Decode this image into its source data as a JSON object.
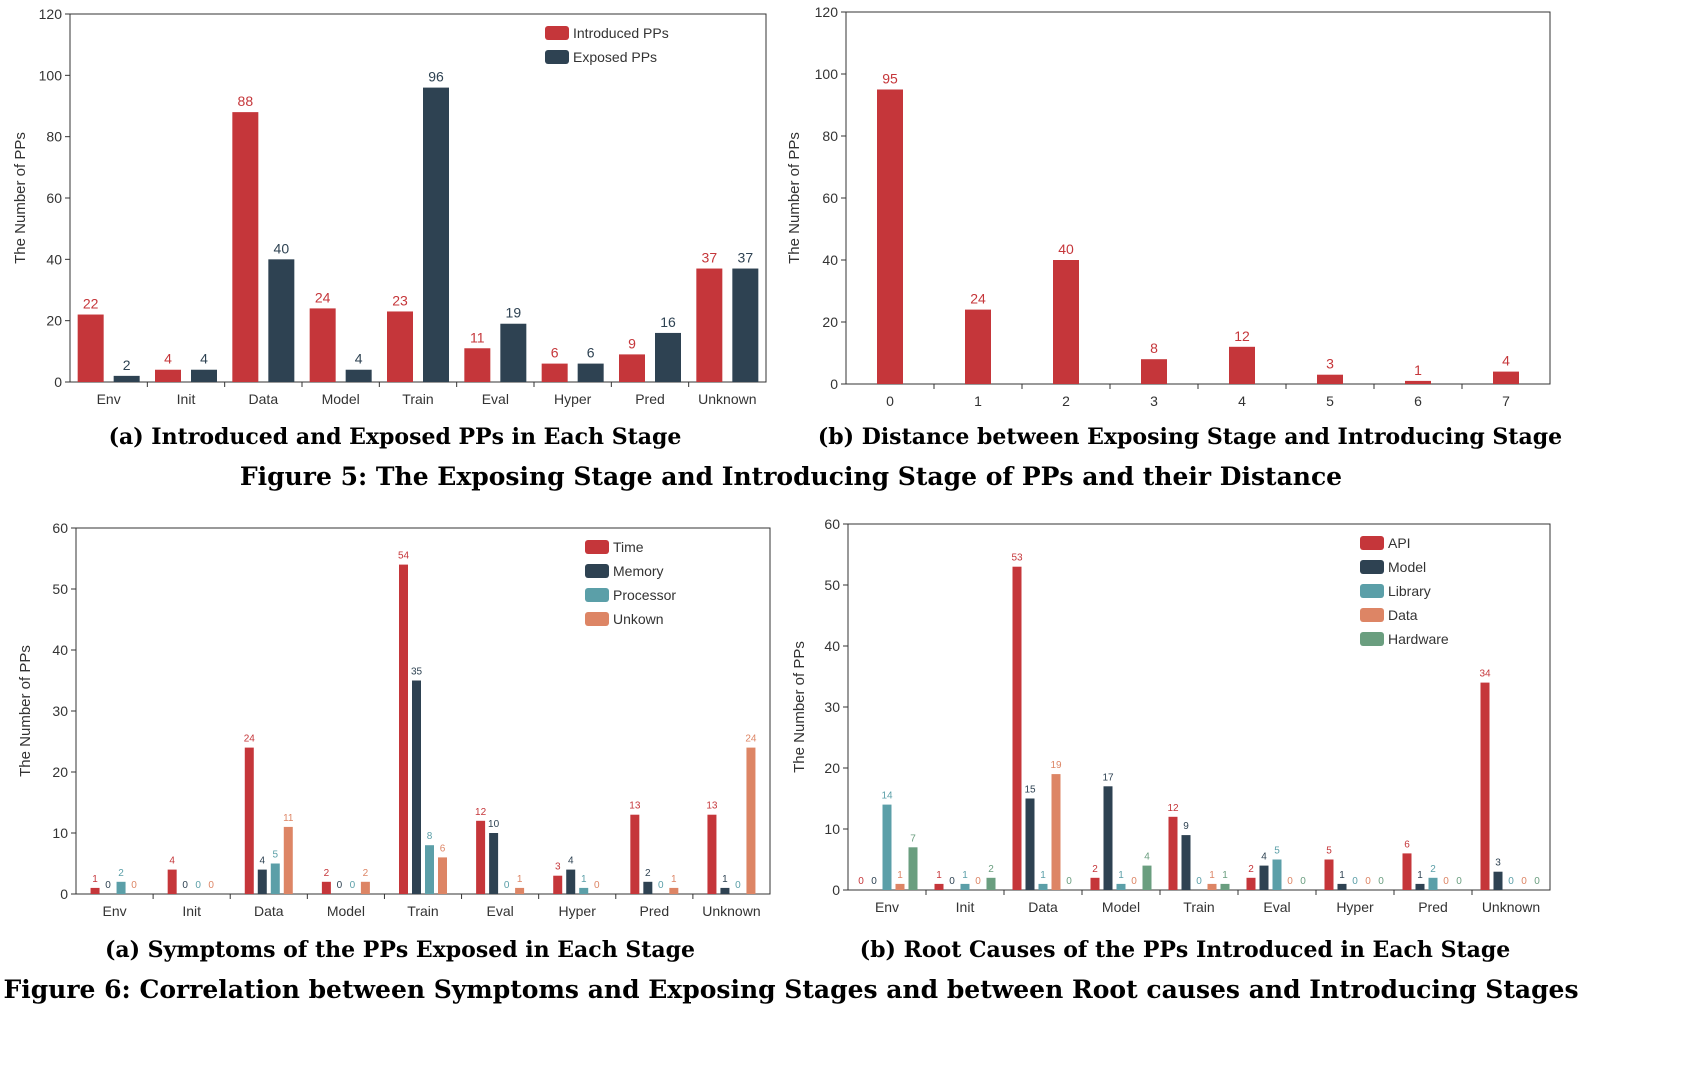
{
  "figures": {
    "fig5": {
      "caption": "Figure 5: The Exposing Stage and Introducing Stage of PPs and their Distance",
      "sub_a": "(a) Introduced and Exposed PPs in Each Stage",
      "sub_b": "(b) Distance between Exposing Stage and Introducing Stage"
    },
    "fig6": {
      "caption": "Figure 6: Correlation between Symptoms and Exposing Stages and between Root causes and Introducing Stages",
      "sub_a": "(a) Symptoms of the PPs Exposed in Each Stage",
      "sub_b": "(b) Root Causes of the PPs Introduced in Each Stage"
    }
  },
  "chart_data": [
    {
      "id": "fig5a",
      "type": "bar",
      "title": "(a) Introduced and Exposed PPs in Each Stage",
      "xlabel": "",
      "ylabel": "The Number of PPs",
      "ylim": [
        0,
        120
      ],
      "yticks": [
        0,
        20,
        40,
        60,
        80,
        100,
        120
      ],
      "categories": [
        "Env",
        "Init",
        "Data",
        "Model",
        "Train",
        "Eval",
        "Hyper",
        "Pred",
        "Unknown"
      ],
      "legend_position": "top-right",
      "grid": false,
      "series": [
        {
          "name": "Introduced PPs",
          "color": "#c5363a",
          "values": [
            22,
            4,
            88,
            24,
            23,
            11,
            6,
            9,
            37
          ]
        },
        {
          "name": "Exposed PPs",
          "color": "#2e4252",
          "values": [
            2,
            4,
            40,
            4,
            96,
            19,
            6,
            16,
            37
          ]
        }
      ]
    },
    {
      "id": "fig5b",
      "type": "bar",
      "title": "(b) Distance between Exposing Stage and Introducing Stage",
      "xlabel": "",
      "ylabel": "The Number of PPs",
      "ylim": [
        0,
        120
      ],
      "yticks": [
        0,
        20,
        40,
        60,
        80,
        100,
        120
      ],
      "categories": [
        "0",
        "1",
        "2",
        "3",
        "4",
        "5",
        "6",
        "7"
      ],
      "grid": false,
      "series": [
        {
          "name": "",
          "color": "#c5363a",
          "values": [
            95,
            24,
            40,
            8,
            12,
            3,
            1,
            4
          ]
        }
      ]
    },
    {
      "id": "fig6a",
      "type": "bar",
      "title": "(a) Symptoms of the PPs Exposed in Each Stage",
      "xlabel": "",
      "ylabel": "The Number of PPs",
      "ylim": [
        0,
        60
      ],
      "yticks": [
        0,
        10,
        20,
        30,
        40,
        50,
        60
      ],
      "categories": [
        "Env",
        "Init",
        "Data",
        "Model",
        "Train",
        "Eval",
        "Hyper",
        "Pred",
        "Unknown"
      ],
      "legend_position": "top-right",
      "grid": false,
      "series": [
        {
          "name": "Time",
          "color": "#c5363a",
          "values": [
            1,
            4,
            24,
            2,
            54,
            12,
            3,
            13,
            13
          ]
        },
        {
          "name": "Memory",
          "color": "#2e4252",
          "values": [
            0,
            0,
            4,
            0,
            35,
            10,
            4,
            2,
            1
          ]
        },
        {
          "name": "Processor",
          "color": "#5b9fa8",
          "values": [
            2,
            0,
            5,
            0,
            8,
            0,
            1,
            0,
            0
          ]
        },
        {
          "name": "Unkown",
          "color": "#dd8565",
          "values": [
            0,
            0,
            11,
            2,
            6,
            1,
            0,
            1,
            24
          ]
        }
      ]
    },
    {
      "id": "fig6b",
      "type": "bar",
      "title": "(b) Root Causes of the PPs Introduced in Each Stage",
      "xlabel": "",
      "ylabel": "The Number of PPs",
      "ylim": [
        0,
        60
      ],
      "yticks": [
        0,
        10,
        20,
        30,
        40,
        50,
        60
      ],
      "categories": [
        "Env",
        "Init",
        "Data",
        "Model",
        "Train",
        "Eval",
        "Hyper",
        "Pred",
        "Unknown"
      ],
      "legend_position": "top-right",
      "grid": false,
      "series": [
        {
          "name": "API",
          "color": "#c5363a",
          "values": [
            0,
            1,
            53,
            2,
            12,
            2,
            5,
            6,
            34
          ]
        },
        {
          "name": "Model",
          "color": "#2e4252",
          "values": [
            0,
            0,
            15,
            17,
            9,
            4,
            1,
            1,
            3
          ]
        },
        {
          "name": "Library",
          "color": "#5b9fa8",
          "values": [
            14,
            1,
            1,
            1,
            0,
            5,
            0,
            2,
            0
          ]
        },
        {
          "name": "Data",
          "color": "#dd8565",
          "values": [
            1,
            0,
            19,
            0,
            1,
            0,
            0,
            0,
            0
          ]
        },
        {
          "name": "Hardware",
          "color": "#6a9e7f",
          "values": [
            7,
            2,
            0,
            4,
            1,
            0,
            0,
            0,
            0
          ]
        }
      ]
    }
  ]
}
